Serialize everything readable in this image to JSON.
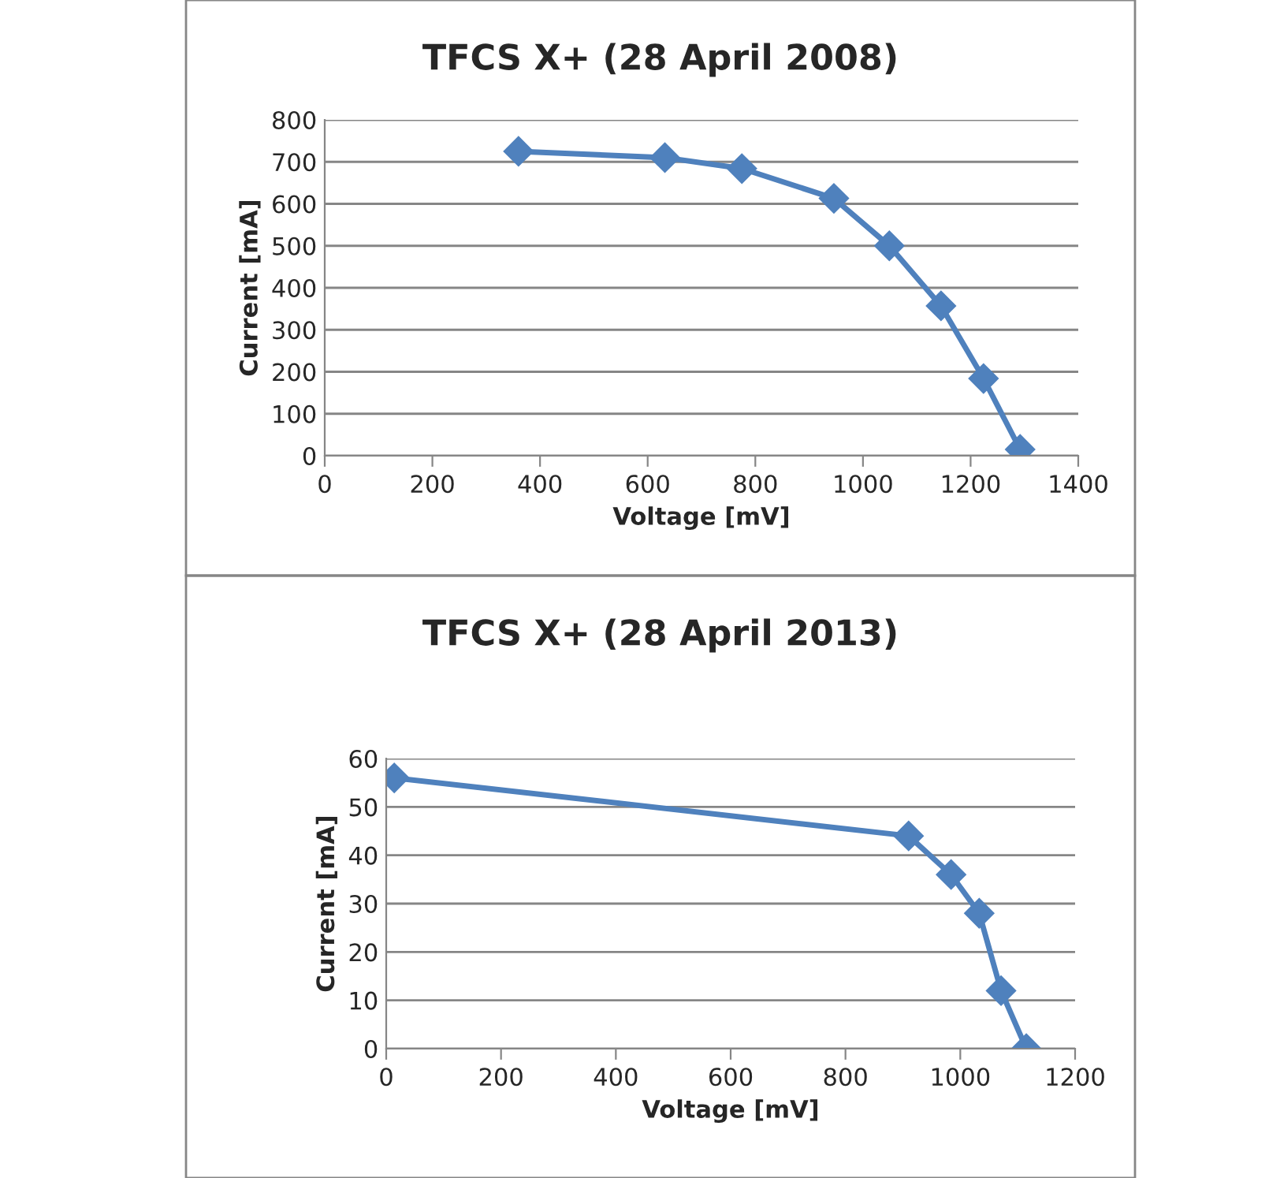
{
  "chart_data": [
    {
      "type": "line",
      "title": "TFCS X+ (28 April 2008)",
      "xlabel": "Voltage [mV]",
      "ylabel": "Current [mA]",
      "x": [
        360,
        632,
        775,
        946,
        1049,
        1145,
        1224,
        1292
      ],
      "series": [
        {
          "color": "#4f81bd",
          "values": [
            725,
            710,
            684,
            613,
            500,
            357,
            184,
            15
          ]
        }
      ],
      "xlim": [
        0,
        1400
      ],
      "xticks": [
        0,
        200,
        400,
        600,
        800,
        1000,
        1200,
        1400
      ],
      "ylim": [
        0,
        800
      ],
      "yticks": [
        0,
        100,
        200,
        300,
        400,
        500,
        600,
        700,
        800
      ],
      "grid": "y",
      "marker": "diamond",
      "line_style": "solid"
    },
    {
      "type": "line",
      "title": "TFCS X+ (28 April 2013)",
      "xlabel": "Voltage [mV]",
      "ylabel": "Current [mA]",
      "x": [
        14,
        910,
        984,
        1033,
        1071,
        1115
      ],
      "series": [
        {
          "color": "#4f81bd",
          "values": [
            56,
            44,
            36,
            28,
            12,
            0
          ]
        }
      ],
      "xlim": [
        0,
        1200
      ],
      "xticks": [
        0,
        200,
        400,
        600,
        800,
        1000,
        1200
      ],
      "ylim": [
        0,
        60
      ],
      "yticks": [
        0,
        10,
        20,
        30,
        40,
        50,
        60
      ],
      "grid": "y",
      "marker": "diamond",
      "line_style": "solid"
    }
  ]
}
